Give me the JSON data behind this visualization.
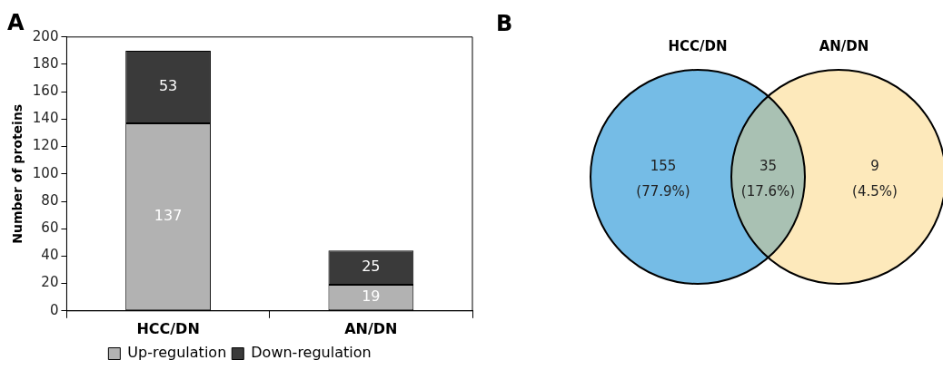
{
  "chart_data": [
    {
      "type": "bar",
      "title": "A",
      "ylabel": "Number of proteins",
      "categories": [
        "HCC/DN",
        "AN/DN"
      ],
      "stacked": true,
      "series": [
        {
          "name": "Up-regulation",
          "color": "#b2b2b2",
          "values": [
            137,
            19
          ]
        },
        {
          "name": "Down-regulation",
          "color": "#3a3a3a",
          "values": [
            53,
            25
          ]
        }
      ],
      "ylim": [
        0,
        200
      ],
      "yticks": [
        0,
        20,
        40,
        60,
        80,
        100,
        120,
        140,
        160,
        180,
        200
      ],
      "grid": false,
      "legend": "bottom",
      "data_labels": true
    },
    {
      "type": "other",
      "title": "B",
      "annotations": [
        "HCC/DN",
        "AN/DN",
        "155 (77.9%)",
        "35 (17.6%)",
        "9 (4.5%)"
      ],
      "colors": [
        "#75bce6",
        "#a9c1b3",
        "#fde9bb"
      ]
    }
  ]
}
